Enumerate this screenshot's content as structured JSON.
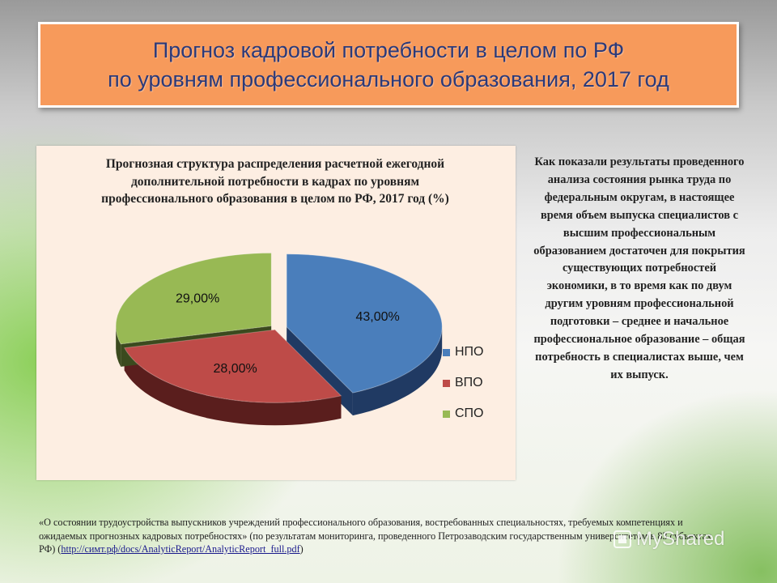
{
  "slide": {
    "title_line1": "Прогноз кадровой потребности в целом по РФ",
    "title_line2": "по уровням профессионального образования, 2017 год"
  },
  "side_text": "Как показали результаты проведенного анализа состояния рынка труда по федеральным округам, в настоящее время объем выпуска специалистов с высшим профессиональным образованием достаточен для покрытия существующих потребностей экономики, в то время как по двум другим уровням профессиональной подготовки – среднее и начальное профессиональное образование – общая потребность в специалистах выше, чем их выпуск.",
  "footnote": {
    "text": "«О состоянии трудоустройства выпускников учреждений профессионального образования, востребованных  специальностях, требуемых компетенциях и ожидаемых прогнозных кадровых потребностях» (по результатам мониторинга, проведенного Петрозаводским государственным университетом  в 83 субъектах РФ) (",
    "link": "http://симт.рф/docs/AnalyticReport/AnalyticReport_full.pdf",
    "tail": ")"
  },
  "watermark": {
    "text": "MyShared",
    "icon": "myshared-logo-icon"
  },
  "chart_data": {
    "type": "pie",
    "title": "Прогнозная структура распределения расчетной ежегодной дополнительной потребности в кадрах по уровням профессионального образования в целом по РФ, 2017 год (%)",
    "categories": [
      "НПО",
      "ВПО",
      "СПО"
    ],
    "values": [
      43,
      28,
      29
    ],
    "data_labels": [
      "43,00%",
      "28,00%",
      "29,00%"
    ],
    "colors": [
      "#4a7ebb",
      "#be4b48",
      "#98b954"
    ],
    "side_colors": [
      "#203a63",
      "#5a1e1d",
      "#3b4a1e"
    ],
    "exploded": true,
    "three_d": true,
    "legend_position": "right"
  }
}
